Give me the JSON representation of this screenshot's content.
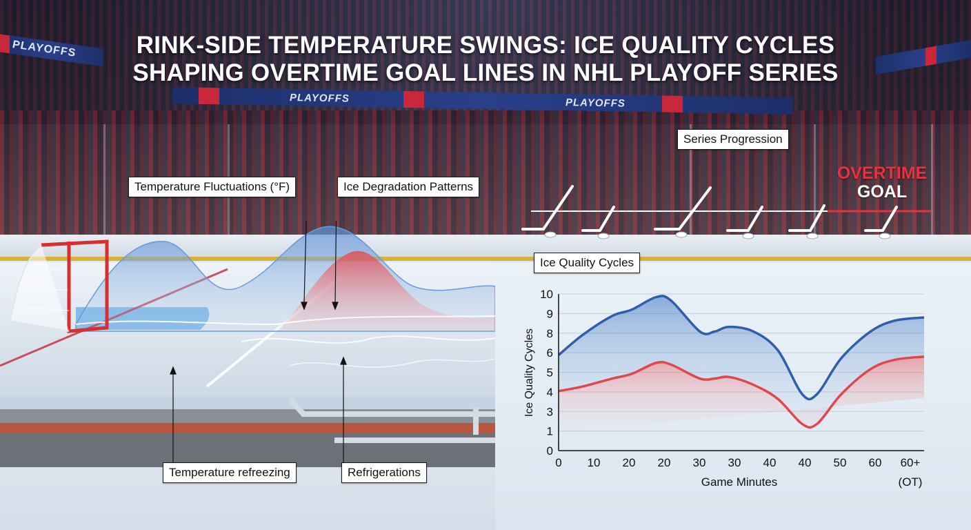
{
  "title": {
    "line1": "RINK-SIDE TEMPERATURE SWINGS: ICE QUALITY CYCLES",
    "line2": "SHAPING OVERTIME GOAL LINES IN NHL PLAYOFF SERIES"
  },
  "banners": {
    "text": "PLAYOFFS"
  },
  "callouts": {
    "temperature_fluctuations": "Temperature Fluctuations (°F)",
    "ice_degradation": "Ice Degradation Patterns",
    "temperature_refreezing": "Temperature refreezing",
    "refrigerations": "Refrigerations",
    "series_progression": "Series Progression",
    "ice_quality_cycles": "Ice Quality Cycles"
  },
  "overtime": {
    "line1": "OVERTIME",
    "line2": "GOAL"
  },
  "colors": {
    "blue_series": "#2f5fa8",
    "red_series": "#e0474c",
    "accent_red": "#e53340"
  },
  "chart_data": {
    "type": "line",
    "title": "Ice Quality Cycles",
    "xlabel": "Game Minutes",
    "ylabel": "Ice Quality Cycles",
    "x_ticks": [
      "0",
      "10",
      "20",
      "20",
      "30",
      "30",
      "40",
      "40",
      "50",
      "60",
      "60+"
    ],
    "x_tick_sub": "(OT)",
    "y_ticks": [
      "0",
      "1",
      "3",
      "4",
      "5",
      "6",
      "8",
      "9",
      "10"
    ],
    "ylim": [
      0,
      10
    ],
    "grid": true,
    "series": [
      {
        "color": "#2f5fa8",
        "values": [
          6.1,
          7.4,
          8.6,
          9.0,
          9.8,
          9.6,
          7.6,
          7.6,
          7.9,
          7.6,
          6.4,
          3.6,
          3.6,
          5.9,
          7.6,
          8.3,
          8.5
        ]
      },
      {
        "color": "#e0474c",
        "values": [
          3.8,
          4.1,
          4.6,
          4.9,
          5.6,
          5.5,
          4.6,
          4.6,
          4.7,
          4.2,
          3.3,
          1.7,
          1.7,
          3.6,
          5.2,
          5.8,
          6.0
        ]
      }
    ],
    "x_positions": [
      0,
      5,
      11,
      15,
      20,
      23,
      29,
      32,
      35,
      40,
      45,
      50,
      53,
      58,
      64,
      69,
      75
    ]
  }
}
